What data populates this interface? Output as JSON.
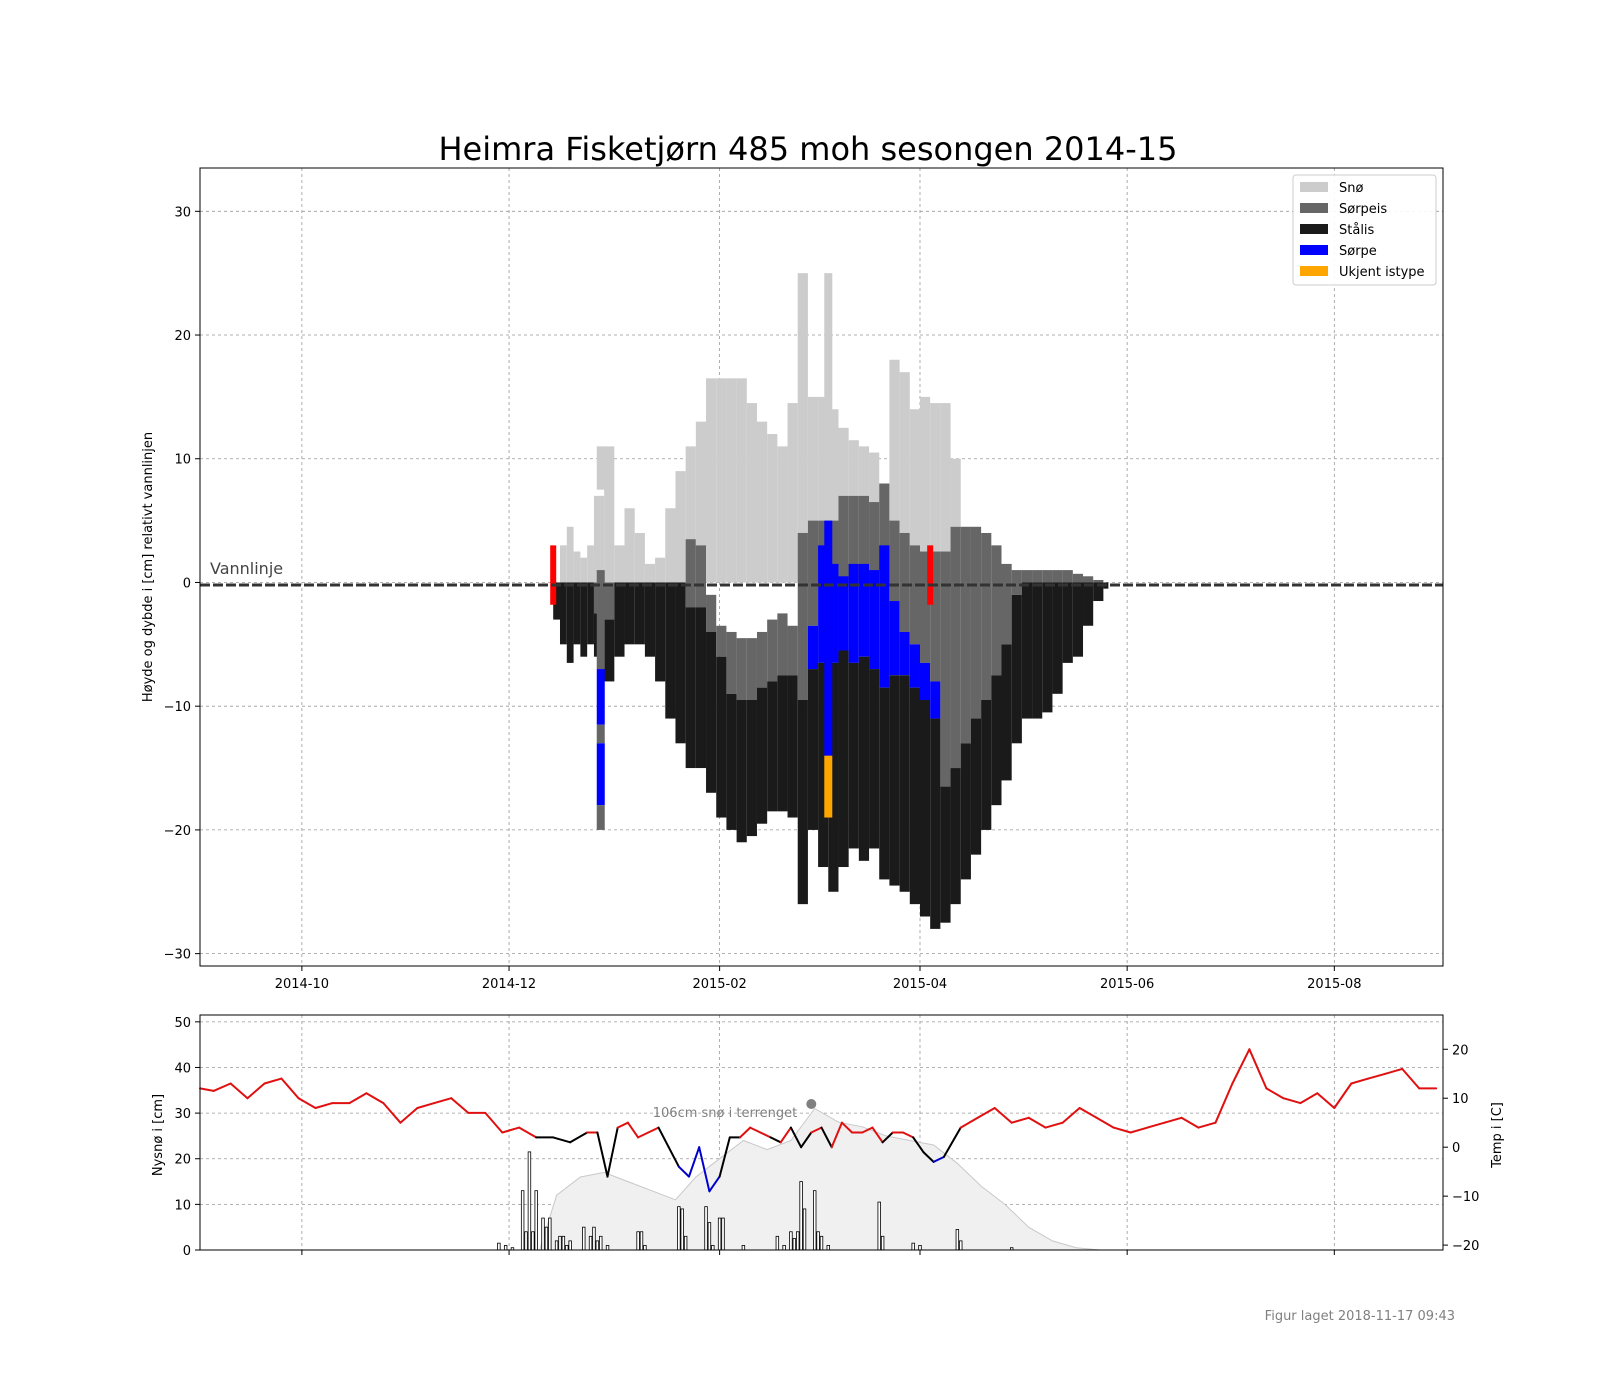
{
  "title": "Heimra Fisketjørn 485 moh sesongen 2014-15",
  "footer": "Figur laget 2018-11-17 09:43",
  "colors": {
    "snow": "#cccccc",
    "slush_ice": "#666666",
    "black_ice": "#1a1a1a",
    "slush": "#0000ff",
    "unknown": "#ffa500",
    "marker": "#ff0000",
    "temp_warm": "#e01010",
    "temp_cold": "#0000cc",
    "temp_mid": "#000000",
    "snow_ground_fill": "#f0f0f0",
    "snow_ground_edge": "#c8c8c8",
    "snow_point": "#808080",
    "grid": "#999999"
  },
  "chart_data": [
    {
      "type": "bar",
      "title": "Heimra Fisketjørn 485 moh sesongen 2014-15",
      "ylabel": "Høyde og dybde i [cm] relativt vannlinjen",
      "xlim": [
        "2014-09-01",
        "2015-09-02"
      ],
      "ylim": [
        -31,
        33.5
      ],
      "grid": true,
      "x_ticks": [
        "2014-10-01",
        "2014-12-01",
        "2015-02-01",
        "2015-04-01",
        "2015-06-01",
        "2015-08-01"
      ],
      "x_tick_labels": [
        "2014-10",
        "2014-12",
        "2015-02",
        "2015-04",
        "2015-06",
        "2015-08"
      ],
      "y_ticks": [
        -30,
        -20,
        -10,
        0,
        10,
        20,
        30
      ],
      "waterline_label": "Vannlinje",
      "legend": {
        "position": "top-right",
        "entries": [
          {
            "label": "Snø",
            "key": "snow"
          },
          {
            "label": "Sørpeis",
            "key": "slush_ice"
          },
          {
            "label": "Stålis",
            "key": "black_ice"
          },
          {
            "label": "Sørpe",
            "key": "slush"
          },
          {
            "label": "Ukjent istype",
            "key": "unknown"
          }
        ]
      },
      "layer_boundaries": {
        "columns": [
          "date",
          "snow_top",
          "ice_surface",
          "slushice_bottom",
          "slush_bottom",
          "ice_bottom"
        ],
        "rows": [
          [
            "2014-12-14",
            0,
            0,
            0,
            0,
            -3
          ],
          [
            "2014-12-16",
            3,
            0,
            0,
            0,
            -5
          ],
          [
            "2014-12-18",
            4.5,
            0,
            0,
            0,
            -6.5
          ],
          [
            "2014-12-20",
            2.5,
            0,
            0,
            0,
            -5
          ],
          [
            "2014-12-22",
            2,
            0,
            0,
            0,
            -6
          ],
          [
            "2014-12-24",
            3,
            0,
            0,
            0,
            -5
          ],
          [
            "2014-12-26",
            7,
            0,
            -2.5,
            -2.5,
            -6
          ],
          [
            "2014-12-29",
            11,
            0,
            -3,
            -3,
            -8
          ],
          [
            "2015-01-01",
            3,
            0,
            0,
            0,
            -6
          ],
          [
            "2015-01-04",
            6,
            0,
            0,
            0,
            -5
          ],
          [
            "2015-01-07",
            4,
            0,
            0,
            0,
            -5
          ],
          [
            "2015-01-10",
            1.5,
            0,
            0,
            0,
            -6
          ],
          [
            "2015-01-13",
            2,
            0,
            0,
            0,
            -8
          ],
          [
            "2015-01-16",
            6,
            0,
            0,
            0,
            -11
          ],
          [
            "2015-01-19",
            9,
            0,
            0,
            0,
            -13
          ],
          [
            "2015-01-22",
            11,
            3.5,
            -2,
            -2,
            -15
          ],
          [
            "2015-01-25",
            13,
            3,
            -2,
            -2,
            -15
          ],
          [
            "2015-01-28",
            16.5,
            -1,
            -4,
            -4,
            -17
          ],
          [
            "2015-01-31",
            16.5,
            -3.5,
            -6,
            -6,
            -19
          ],
          [
            "2015-02-03",
            16.5,
            -4,
            -9,
            -9,
            -20
          ],
          [
            "2015-02-06",
            16.5,
            -4.5,
            -9.5,
            -9.5,
            -21
          ],
          [
            "2015-02-09",
            14.5,
            -4.5,
            -9.5,
            -9.5,
            -20.5
          ],
          [
            "2015-02-12",
            13,
            -4,
            -8.5,
            -8.5,
            -19.5
          ],
          [
            "2015-02-15",
            12,
            -3,
            -8,
            -8,
            -18.5
          ],
          [
            "2015-02-18",
            11,
            -2.5,
            -7.5,
            -7.5,
            -18.5
          ],
          [
            "2015-02-21",
            14.5,
            -3.5,
            -7.5,
            -7.5,
            -19
          ],
          [
            "2015-02-24",
            25,
            4,
            -9.5,
            -9.5,
            -26
          ],
          [
            "2015-02-27",
            15,
            5,
            -3.5,
            -7,
            -20
          ],
          [
            "2015-03-02",
            15,
            5,
            3,
            -6.5,
            -23
          ],
          [
            "2015-03-05",
            14,
            5,
            1.5,
            -6.5,
            -25
          ],
          [
            "2015-03-08",
            12.5,
            7,
            0.5,
            -5.5,
            -23
          ],
          [
            "2015-03-11",
            11.5,
            7,
            1.5,
            -6.5,
            -21.5
          ],
          [
            "2015-03-14",
            11,
            7,
            1.5,
            -6,
            -22.5
          ],
          [
            "2015-03-17",
            10.5,
            6.5,
            1,
            -7,
            -21.5
          ],
          [
            "2015-03-20",
            7.5,
            8,
            3,
            -8.5,
            -24
          ],
          [
            "2015-03-23",
            18,
            5,
            -1.5,
            -7.5,
            -24.5
          ],
          [
            "2015-03-26",
            17,
            4,
            -4,
            -7.5,
            -25
          ],
          [
            "2015-03-29",
            14,
            3,
            -5,
            -8.5,
            -26
          ],
          [
            "2015-04-01",
            15,
            2.5,
            -6.5,
            -9.5,
            -27
          ],
          [
            "2015-04-04",
            14.5,
            2.5,
            -8,
            -11,
            -28
          ],
          [
            "2015-04-07",
            14.5,
            2.5,
            -16.5,
            -16.5,
            -27.5
          ],
          [
            "2015-04-10",
            10,
            4.5,
            -15,
            -15,
            -26
          ],
          [
            "2015-04-13",
            4.5,
            4.5,
            -13,
            -13,
            -24
          ],
          [
            "2015-04-16",
            4.5,
            4.5,
            -11,
            -11,
            -22
          ],
          [
            "2015-04-19",
            4,
            4,
            -9.5,
            -9.5,
            -20
          ],
          [
            "2015-04-22",
            3,
            3,
            -7.5,
            -7.5,
            -18
          ],
          [
            "2015-04-25",
            1.5,
            1.5,
            -5,
            -5,
            -16
          ],
          [
            "2015-04-28",
            0.8,
            1,
            -1,
            -1,
            -13
          ],
          [
            "2015-05-01",
            0.5,
            1,
            0,
            0,
            -11
          ],
          [
            "2015-05-04",
            0.5,
            1,
            0,
            0,
            -11
          ],
          [
            "2015-05-07",
            0.5,
            1,
            0,
            0,
            -10.5
          ],
          [
            "2015-05-10",
            0.5,
            1,
            0,
            0,
            -9
          ],
          [
            "2015-05-13",
            0.5,
            1,
            0,
            0,
            -6.5
          ],
          [
            "2015-05-16",
            0.5,
            0.7,
            0,
            0,
            -6
          ],
          [
            "2015-05-19",
            0.3,
            0.5,
            0,
            0,
            -3.5
          ],
          [
            "2015-05-22",
            0,
            0.2,
            0,
            0,
            -1.5
          ],
          [
            "2015-05-25",
            0,
            0,
            0,
            0,
            -0.5
          ]
        ]
      },
      "measurement_columns": [
        {
          "date": "2014-12-28",
          "segments": [
            {
              "layer": "snow",
              "from": 7.5,
              "to": 11
            },
            {
              "layer": "slush_ice",
              "from": -7,
              "to": 1
            },
            {
              "layer": "slush",
              "from": -11.5,
              "to": -7
            },
            {
              "layer": "slush_ice",
              "from": -13,
              "to": -11.5
            },
            {
              "layer": "slush",
              "from": -18,
              "to": -13
            },
            {
              "layer": "slush_ice",
              "from": -20,
              "to": -18
            }
          ]
        },
        {
          "date": "2015-03-05",
          "segments": [
            {
              "layer": "snow",
              "from": 5,
              "to": 25
            },
            {
              "layer": "slush",
              "from": -14,
              "to": 5
            },
            {
              "layer": "unknown",
              "from": -19,
              "to": -14
            }
          ]
        }
      ],
      "markers": [
        {
          "date": "2014-12-14",
          "from": -1.8,
          "to": 3
        },
        {
          "date": "2015-04-04",
          "from": -1.8,
          "to": 3
        }
      ]
    },
    {
      "type": "line",
      "y_left_label": "Nysnø i [cm]",
      "y_right_label": "Temp i [C]",
      "xlim": [
        "2014-09-01",
        "2015-09-02"
      ],
      "ylim_left": [
        0,
        51.5
      ],
      "ylim_right": [
        -21,
        27
      ],
      "y_ticks_left": [
        0,
        10,
        20,
        30,
        40,
        50
      ],
      "y_ticks_right": [
        -20,
        -10,
        0,
        10,
        20
      ],
      "grid": true,
      "snow_depth_terrain": {
        "dates": [
          "2014-12-10",
          "2014-12-15",
          "2014-12-22",
          "2014-12-29",
          "2015-01-05",
          "2015-01-12",
          "2015-01-19",
          "2015-01-25",
          "2015-02-01",
          "2015-02-08",
          "2015-02-15",
          "2015-02-22",
          "2015-03-01",
          "2015-03-08",
          "2015-03-15",
          "2015-03-22",
          "2015-03-29",
          "2015-04-05",
          "2015-04-12",
          "2015-04-19",
          "2015-04-26",
          "2015-05-03",
          "2015-05-10",
          "2015-05-17",
          "2015-05-24"
        ],
        "values": [
          0,
          12,
          16,
          17,
          15,
          13,
          11,
          16,
          20,
          24,
          22,
          24,
          31,
          28,
          27,
          25,
          24,
          23,
          19,
          14,
          10,
          5,
          2,
          0.5,
          0
        ]
      },
      "snow_max_point": {
        "date": "2015-02-28",
        "value": 32,
        "label": "106cm snø i terrenget"
      },
      "new_snow": {
        "dates": [
          "2014-11-28",
          "2014-11-30",
          "2014-12-02",
          "2014-12-05",
          "2014-12-06",
          "2014-12-07",
          "2014-12-08",
          "2014-12-09",
          "2014-12-11",
          "2014-12-12",
          "2014-12-13",
          "2014-12-15",
          "2014-12-16",
          "2014-12-17",
          "2014-12-18",
          "2014-12-19",
          "2014-12-23",
          "2014-12-25",
          "2014-12-26",
          "2014-12-27",
          "2014-12-28",
          "2014-12-30",
          "2015-01-08",
          "2015-01-09",
          "2015-01-10",
          "2015-01-20",
          "2015-01-21",
          "2015-01-22",
          "2015-01-28",
          "2015-01-29",
          "2015-01-30",
          "2015-02-01",
          "2015-02-02",
          "2015-02-08",
          "2015-02-18",
          "2015-02-20",
          "2015-02-22",
          "2015-02-23",
          "2015-02-24",
          "2015-02-25",
          "2015-02-26",
          "2015-03-01",
          "2015-03-02",
          "2015-03-03",
          "2015-03-05",
          "2015-03-20",
          "2015-03-21",
          "2015-03-30",
          "2015-04-01",
          "2015-04-12",
          "2015-04-13",
          "2015-04-28"
        ],
        "values": [
          1.5,
          1,
          0.5,
          13,
          4,
          21.5,
          4,
          13,
          7,
          5,
          7,
          2,
          3,
          3,
          1,
          2,
          5,
          3,
          5,
          2,
          3,
          1,
          4,
          4,
          1,
          9.5,
          9,
          3,
          9.5,
          6,
          1,
          7,
          7,
          1,
          3,
          1,
          4,
          2.5,
          4,
          15,
          9,
          13,
          4,
          3,
          1,
          10.5,
          3,
          1.5,
          1,
          4.5,
          2,
          0.5
        ]
      },
      "temperature": {
        "note_color": "red above 2 °C, black between -2 and 2 °C, blue below -2 °C",
        "dates": [
          "2014-09-01",
          "2014-09-05",
          "2014-09-10",
          "2014-09-15",
          "2014-09-20",
          "2014-09-25",
          "2014-09-30",
          "2014-10-05",
          "2014-10-10",
          "2014-10-15",
          "2014-10-20",
          "2014-10-25",
          "2014-10-30",
          "2014-11-04",
          "2014-11-09",
          "2014-11-14",
          "2014-11-19",
          "2014-11-24",
          "2014-11-29",
          "2014-12-04",
          "2014-12-09",
          "2014-12-14",
          "2014-12-19",
          "2014-12-24",
          "2014-12-27",
          "2014-12-30",
          "2015-01-02",
          "2015-01-05",
          "2015-01-08",
          "2015-01-11",
          "2015-01-14",
          "2015-01-17",
          "2015-01-20",
          "2015-01-23",
          "2015-01-26",
          "2015-01-29",
          "2015-02-01",
          "2015-02-04",
          "2015-02-07",
          "2015-02-10",
          "2015-02-13",
          "2015-02-16",
          "2015-02-19",
          "2015-02-22",
          "2015-02-25",
          "2015-02-28",
          "2015-03-03",
          "2015-03-06",
          "2015-03-09",
          "2015-03-12",
          "2015-03-15",
          "2015-03-18",
          "2015-03-21",
          "2015-03-24",
          "2015-03-27",
          "2015-03-30",
          "2015-04-02",
          "2015-04-05",
          "2015-04-08",
          "2015-04-13",
          "2015-04-18",
          "2015-04-23",
          "2015-04-28",
          "2015-05-03",
          "2015-05-08",
          "2015-05-13",
          "2015-05-18",
          "2015-05-23",
          "2015-05-28",
          "2015-06-02",
          "2015-06-07",
          "2015-06-12",
          "2015-06-17",
          "2015-06-22",
          "2015-06-27",
          "2015-07-02",
          "2015-07-07",
          "2015-07-12",
          "2015-07-17",
          "2015-07-22",
          "2015-07-27",
          "2015-08-01",
          "2015-08-06",
          "2015-08-11",
          "2015-08-16",
          "2015-08-21",
          "2015-08-26",
          "2015-08-31"
        ],
        "values": [
          12,
          11.5,
          13,
          10,
          13,
          14,
          10,
          8,
          9,
          9,
          11,
          9,
          5,
          8,
          9,
          10,
          7,
          7,
          3,
          4,
          2,
          2,
          1,
          3,
          3,
          -6,
          4,
          5,
          2,
          3,
          4,
          0,
          -4,
          -6,
          0,
          -9,
          -6,
          2,
          2,
          4,
          3,
          2,
          1,
          4,
          0,
          3,
          4,
          0,
          5,
          3,
          3,
          4,
          1,
          3,
          3,
          2,
          -1,
          -3,
          -2,
          4,
          6,
          8,
          5,
          6,
          4,
          5,
          8,
          6,
          4,
          3,
          4,
          5,
          6,
          4,
          5,
          13,
          20,
          12,
          10,
          9,
          11,
          8,
          13,
          14,
          15,
          16,
          12,
          12
        ]
      }
    }
  ]
}
